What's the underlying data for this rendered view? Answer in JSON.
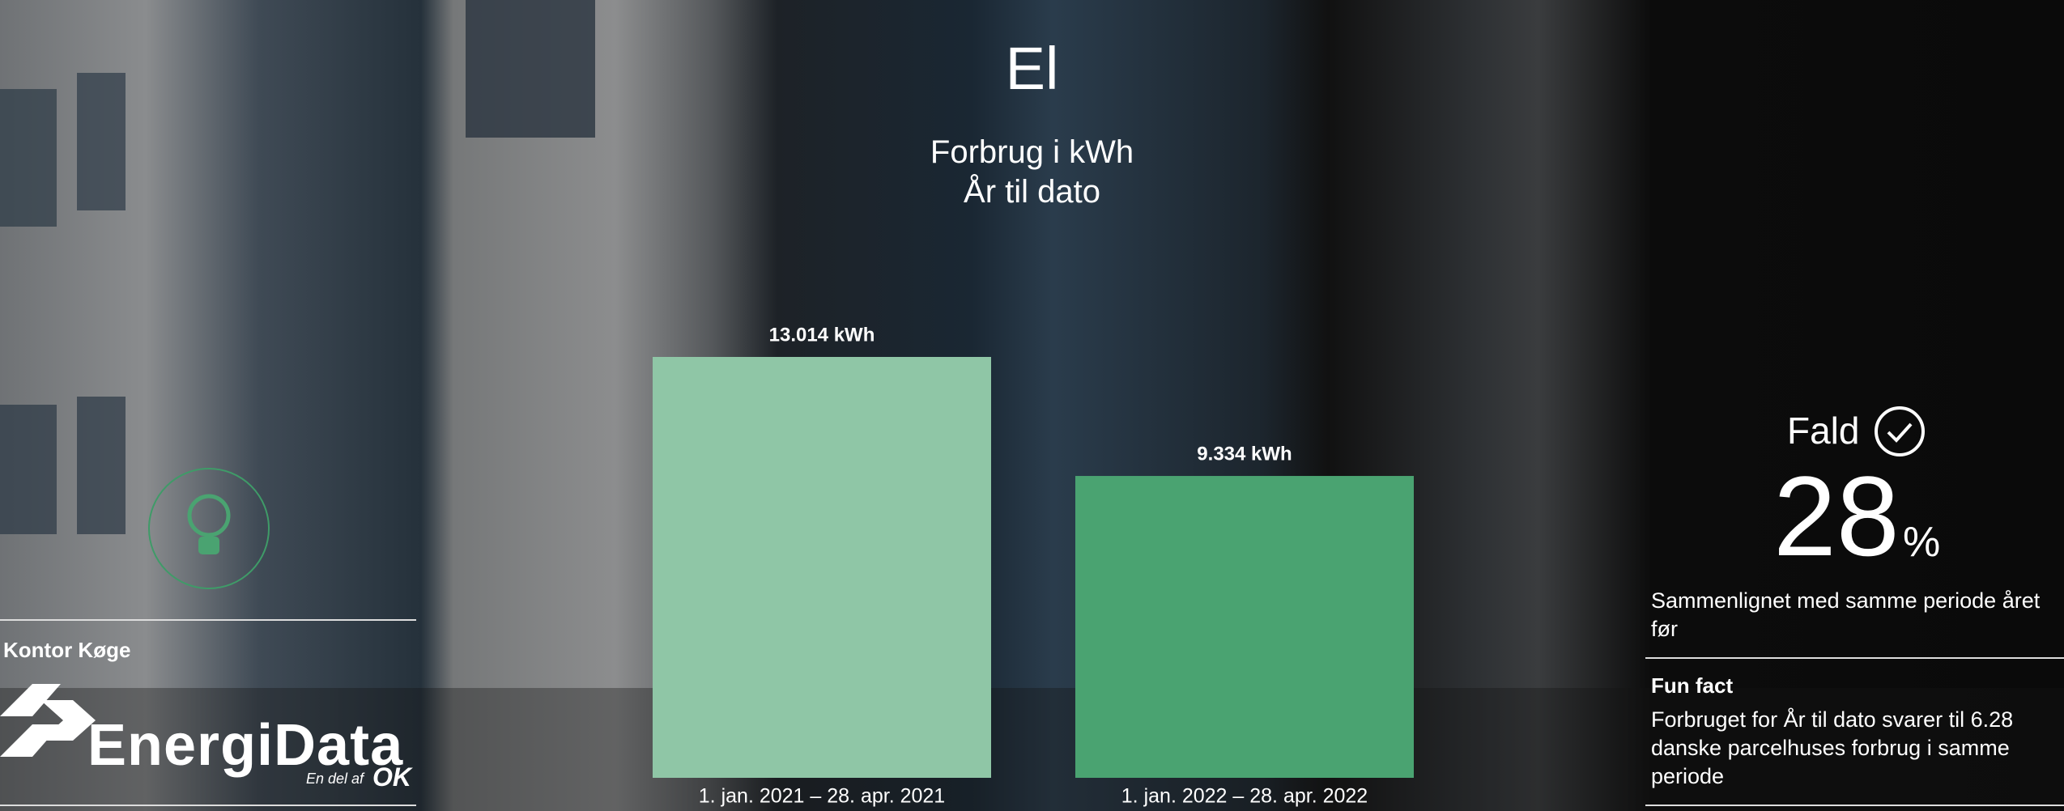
{
  "chart_data": {
    "type": "bar",
    "title": "El",
    "subtitle_lines": [
      "Forbrug i kWh",
      "År til dato"
    ],
    "categories": [
      "1. jan. 2021 – 28. apr. 2021",
      "1. jan. 2022 – 28. apr. 2022"
    ],
    "values": [
      13014,
      9334
    ],
    "value_labels": [
      "13.014 kWh",
      "9.334 kWh"
    ],
    "colors": [
      "#8fc6a6",
      "#4aa371"
    ]
  },
  "kpi": {
    "label": "Fald",
    "value": 28,
    "unit": "%",
    "note": "Sammenlignet med samme periode året før"
  },
  "fun_fact": {
    "title": "Fun fact",
    "text": "Forbruget for År til dato svarer til 6.28 danske parcelhuses forbrug i samme periode"
  },
  "sidebar": {
    "location": "Kontor Køge",
    "logo": "EnergiData",
    "tagline": "En del af",
    "brand": "OK"
  }
}
